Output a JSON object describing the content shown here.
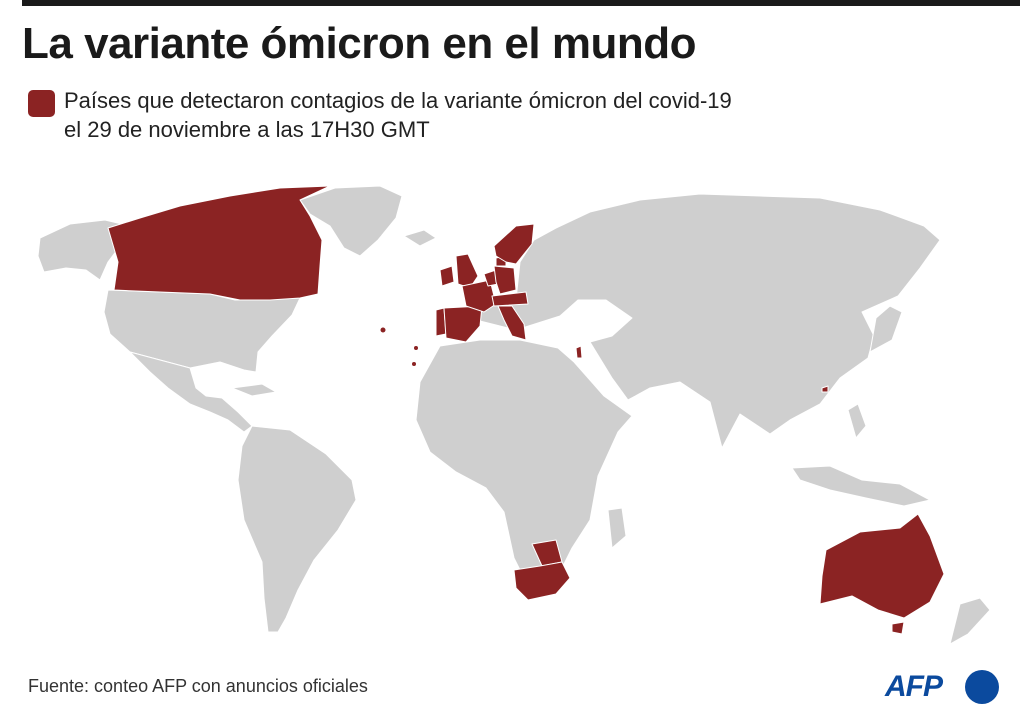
{
  "title": "La variante ómicron en el mundo",
  "legend": {
    "line1": "Países que detectaron contagios de la variante ómicron del covid-19",
    "line2": "el 29 de noviembre a las 17H30 GMT",
    "color": "#8b2323"
  },
  "colors": {
    "land": "#cfcfcf",
    "highlight": "#8b2323",
    "borders": "#ffffff",
    "ocean": "#ffffff"
  },
  "highlighted_countries": [
    "Canadá",
    "Reino Unido",
    "Irlanda",
    "Portugal",
    "España",
    "Francia",
    "Bélgica",
    "Países Bajos",
    "Alemania",
    "Dinamarca",
    "Suecia",
    "Noruega",
    "Austria",
    "Suiza",
    "República Checa",
    "Italia",
    "Israel",
    "Sudáfrica",
    "Botsuana",
    "Hong Kong",
    "Australia"
  ],
  "source": "Fuente: conteo AFP con anuncios oficiales",
  "logo": {
    "text": "AFP",
    "color": "#0b4a9e"
  }
}
